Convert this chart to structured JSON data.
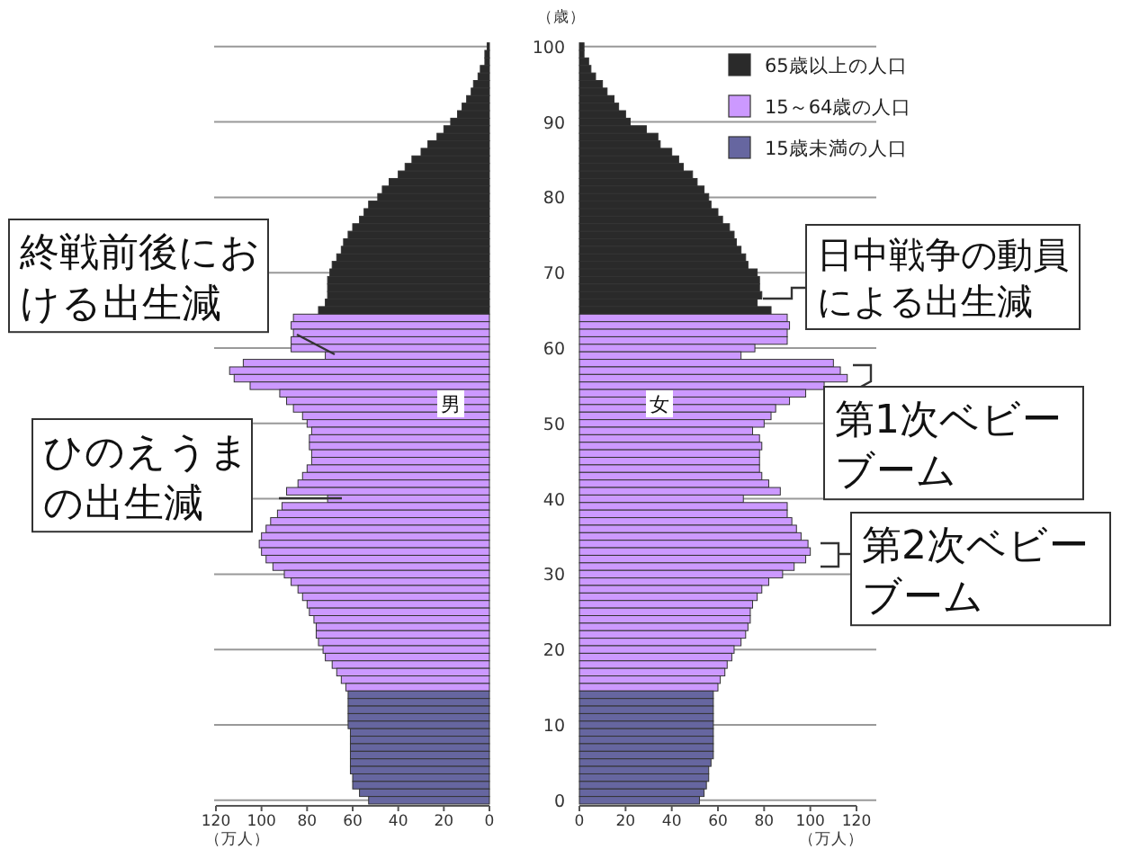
{
  "chart_data": [
    {
      "type": "bar",
      "orientation": "horizontal",
      "tick_labels": "x",
      "grid": "y",
      "xlabel": "（万人）",
      "xlim": [
        120,
        0
      ],
      "xticks": [
        120,
        100,
        80,
        60,
        40,
        20,
        0
      ],
      "annotations": [
        "男",
        "終戦前後における出生減",
        "ひのえうまの出生減"
      ],
      "categories": [
        "100",
        null,
        null,
        null,
        null,
        null,
        null,
        null,
        null,
        null,
        "90",
        null,
        null,
        null,
        null,
        null,
        null,
        null,
        null,
        null,
        "80",
        null,
        null,
        null,
        null,
        null,
        null,
        null,
        null,
        null,
        "70",
        null,
        null,
        null,
        null,
        null,
        null,
        null,
        null,
        null,
        "60",
        null,
        null,
        null,
        null,
        null,
        null,
        null,
        null,
        null,
        "50",
        null,
        null,
        null,
        null,
        null,
        null,
        null,
        null,
        null,
        "40",
        null,
        null,
        null,
        null,
        null,
        null,
        null,
        null,
        null,
        "30",
        null,
        null,
        null,
        null,
        null,
        null,
        null,
        null,
        null,
        "20",
        null,
        null,
        null,
        null,
        null,
        null,
        null,
        null,
        null,
        "10",
        null,
        null,
        null,
        null,
        null,
        null,
        null,
        null,
        null,
        "0"
      ],
      "series": [
        {
          "color": "#2a2a2a",
          "values": [
            1,
            2,
            2,
            4,
            5,
            7,
            8,
            10,
            12,
            14,
            17,
            20,
            23,
            27,
            30,
            34,
            37,
            40,
            44,
            47,
            49,
            53,
            55,
            57,
            60,
            62,
            64,
            65,
            67,
            69,
            70,
            71,
            71,
            71,
            72,
            75,
            null,
            null,
            null,
            null,
            null,
            null,
            null,
            null,
            null,
            null,
            null,
            null,
            null,
            null,
            null,
            null,
            null,
            null,
            null,
            null,
            null,
            null,
            null,
            null,
            null,
            null,
            null,
            null,
            null,
            null,
            null,
            null,
            null,
            null,
            null,
            null,
            null,
            null,
            null,
            null,
            null,
            null,
            null,
            null,
            null,
            null,
            null,
            null,
            null,
            null,
            null,
            null,
            null,
            null,
            null,
            null,
            null,
            null,
            null,
            null,
            null,
            null,
            null,
            null,
            null
          ]
        },
        {
          "color": "#cc99ff",
          "values": [
            null,
            null,
            null,
            null,
            null,
            null,
            null,
            null,
            null,
            null,
            null,
            null,
            null,
            null,
            null,
            null,
            null,
            null,
            null,
            null,
            null,
            null,
            null,
            null,
            null,
            null,
            null,
            null,
            null,
            null,
            null,
            null,
            null,
            null,
            null,
            null,
            86,
            87,
            86,
            87,
            87,
            72,
            108,
            114,
            112,
            105,
            92,
            89,
            86,
            82,
            80,
            78,
            79,
            79,
            78,
            78,
            80,
            82,
            84,
            89,
            71,
            91,
            93,
            96,
            98,
            100,
            101,
            100,
            98,
            95,
            90,
            87,
            84,
            82,
            80,
            79,
            77,
            76,
            76,
            75,
            73,
            72,
            69,
            67,
            65,
            63,
            null,
            null,
            null,
            null,
            null,
            null,
            null,
            null,
            null,
            null,
            null,
            null,
            null,
            null,
            null
          ]
        },
        {
          "color": "#6666a0",
          "values": [
            null,
            null,
            null,
            null,
            null,
            null,
            null,
            null,
            null,
            null,
            null,
            null,
            null,
            null,
            null,
            null,
            null,
            null,
            null,
            null,
            null,
            null,
            null,
            null,
            null,
            null,
            null,
            null,
            null,
            null,
            null,
            null,
            null,
            null,
            null,
            null,
            null,
            null,
            null,
            null,
            null,
            null,
            null,
            null,
            null,
            null,
            null,
            null,
            null,
            null,
            null,
            null,
            null,
            null,
            null,
            null,
            null,
            null,
            null,
            null,
            null,
            null,
            null,
            null,
            null,
            null,
            null,
            null,
            null,
            null,
            null,
            null,
            null,
            null,
            null,
            null,
            null,
            null,
            null,
            null,
            null,
            null,
            null,
            null,
            null,
            null,
            62,
            62,
            62,
            62,
            62,
            61,
            61,
            61,
            61,
            61,
            61,
            60,
            60,
            57,
            53
          ]
        }
      ]
    },
    {
      "type": "bar",
      "orientation": "horizontal",
      "grid": "y",
      "legend": "top right",
      "ylabel": "（歳）",
      "xlabel": "（万人）",
      "xlim": [
        0,
        120
      ],
      "xticks": [
        0,
        20,
        40,
        60,
        80,
        100,
        120
      ],
      "annotations": [
        "女",
        "日中戦争の動員による出生減",
        "第1次ベビーブーム",
        "第2次ベビーブーム"
      ],
      "categories": [
        "100",
        null,
        null,
        null,
        null,
        null,
        null,
        null,
        null,
        null,
        "90",
        null,
        null,
        null,
        null,
        null,
        null,
        null,
        null,
        null,
        "80",
        null,
        null,
        null,
        null,
        null,
        null,
        null,
        null,
        null,
        "70",
        null,
        null,
        null,
        null,
        null,
        null,
        null,
        null,
        null,
        "60",
        null,
        null,
        null,
        null,
        null,
        null,
        null,
        null,
        null,
        "50",
        null,
        null,
        null,
        null,
        null,
        null,
        null,
        null,
        null,
        "40",
        null,
        null,
        null,
        null,
        null,
        null,
        null,
        null,
        null,
        "30",
        null,
        null,
        null,
        null,
        null,
        null,
        null,
        null,
        null,
        "20",
        null,
        null,
        null,
        null,
        null,
        null,
        null,
        null,
        null,
        "10",
        null,
        null,
        null,
        null,
        null,
        null,
        null,
        null,
        null,
        "0"
      ],
      "series": [
        {
          "name": "65歳以上の人口",
          "color": "#2a2a2a",
          "values": [
            2,
            2,
            4,
            5,
            7,
            10,
            12,
            15,
            17,
            20,
            22,
            29,
            34,
            35,
            40,
            43,
            45,
            49,
            51,
            54,
            56,
            57,
            60,
            62,
            65,
            67,
            68,
            70,
            72,
            73,
            77,
            78,
            78,
            79,
            77,
            83,
            null,
            null,
            null,
            null,
            null,
            null,
            null,
            null,
            null,
            null,
            null,
            null,
            null,
            null,
            null,
            null,
            null,
            null,
            null,
            null,
            null,
            null,
            null,
            null,
            null,
            null,
            null,
            null,
            null,
            null,
            null,
            null,
            null,
            null,
            null,
            null,
            null,
            null,
            null,
            null,
            null,
            null,
            null,
            null,
            null,
            null,
            null,
            null,
            null,
            null,
            null,
            null,
            null,
            null,
            null,
            null,
            null,
            null,
            null,
            null,
            null,
            null,
            null,
            null,
            null
          ]
        },
        {
          "name": "15～64歳の人口",
          "color": "#cc99ff",
          "values": [
            null,
            null,
            null,
            null,
            null,
            null,
            null,
            null,
            null,
            null,
            null,
            null,
            null,
            null,
            null,
            null,
            null,
            null,
            null,
            null,
            null,
            null,
            null,
            null,
            null,
            null,
            null,
            null,
            null,
            null,
            null,
            null,
            null,
            null,
            null,
            null,
            90,
            91,
            90,
            90,
            76,
            70,
            110,
            113,
            116,
            106,
            98,
            91,
            85,
            83,
            80,
            75,
            78,
            79,
            78,
            78,
            78,
            79,
            82,
            87,
            71,
            90,
            90,
            92,
            94,
            96,
            99,
            100,
            98,
            93,
            88,
            82,
            79,
            77,
            75,
            74,
            74,
            73,
            72,
            70,
            67,
            66,
            64,
            63,
            61,
            60,
            null,
            null,
            null,
            null,
            null,
            null,
            null,
            null,
            null,
            null,
            null,
            null,
            null,
            null,
            null
          ]
        },
        {
          "name": "15歳未満の人口",
          "color": "#6666a0",
          "values": [
            null,
            null,
            null,
            null,
            null,
            null,
            null,
            null,
            null,
            null,
            null,
            null,
            null,
            null,
            null,
            null,
            null,
            null,
            null,
            null,
            null,
            null,
            null,
            null,
            null,
            null,
            null,
            null,
            null,
            null,
            null,
            null,
            null,
            null,
            null,
            null,
            null,
            null,
            null,
            null,
            null,
            null,
            null,
            null,
            null,
            null,
            null,
            null,
            null,
            null,
            null,
            null,
            null,
            null,
            null,
            null,
            null,
            null,
            null,
            null,
            null,
            null,
            null,
            null,
            null,
            null,
            null,
            null,
            null,
            null,
            null,
            null,
            null,
            null,
            null,
            null,
            null,
            null,
            null,
            null,
            null,
            null,
            null,
            null,
            null,
            null,
            58,
            58,
            58,
            58,
            58,
            58,
            58,
            58,
            58,
            57,
            56,
            56,
            55,
            54,
            52
          ]
        }
      ]
    }
  ]
}
